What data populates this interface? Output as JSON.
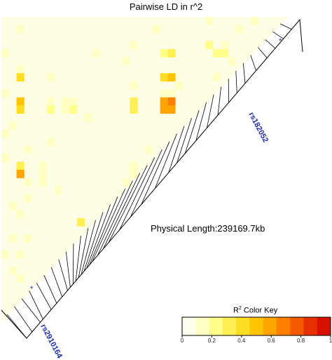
{
  "title": "Pairwise LD in r^2",
  "physical_length": "Physical Length:239169.7kb",
  "snp_labels": {
    "top": "rs182052",
    "bottom": "rs2910164"
  },
  "color_key": {
    "title": "R",
    "title_sup": "2",
    "title_rest": " Color Key",
    "ticks": [
      "0",
      "0.2",
      "0.4",
      "0.6",
      "0.8",
      "1"
    ],
    "colors": [
      "#fffff0",
      "#ffffc4",
      "#ffff8a",
      "#ffef55",
      "#ffdd22",
      "#ffc400",
      "#ffa400",
      "#ff8000",
      "#f55a00",
      "#e83000",
      "#d81000"
    ]
  },
  "chart_data": {
    "type": "heatmap",
    "title": "Pairwise LD in r^2",
    "metric": "r^2",
    "value_range": [
      0,
      1
    ],
    "n_snps": 38,
    "background_r2": 0.02,
    "snps_marked": [
      "rs182052",
      "rs2910164"
    ],
    "cells": [
      {
        "row": 0,
        "col": 33,
        "r2": 0.05
      },
      {
        "row": 0,
        "col": 27,
        "r2": 0.08
      },
      {
        "row": 1,
        "col": 2,
        "r2": 0.08
      },
      {
        "row": 1,
        "col": 20,
        "r2": 0.06
      },
      {
        "row": 1,
        "col": 31,
        "r2": 0.1
      },
      {
        "row": 2,
        "col": 35,
        "r2": 0.45
      },
      {
        "row": 2,
        "col": 36,
        "r2": 0.95
      },
      {
        "row": 3,
        "col": 17,
        "r2": 0.08
      },
      {
        "row": 3,
        "col": 27,
        "r2": 0.15
      },
      {
        "row": 3,
        "col": 29,
        "r2": 0.12
      },
      {
        "row": 4,
        "col": 0,
        "r2": 0.06
      },
      {
        "row": 4,
        "col": 12,
        "r2": 0.1
      },
      {
        "row": 4,
        "col": 21,
        "r2": 0.2
      },
      {
        "row": 4,
        "col": 22,
        "r2": 0.25
      },
      {
        "row": 4,
        "col": 28,
        "r2": 0.2
      },
      {
        "row": 4,
        "col": 29,
        "r2": 0.15
      },
      {
        "row": 5,
        "col": 16,
        "r2": 0.05
      },
      {
        "row": 5,
        "col": 30,
        "r2": 0.08
      },
      {
        "row": 6,
        "col": 2,
        "r2": 0.06
      },
      {
        "row": 7,
        "col": 2,
        "r2": 0.35
      },
      {
        "row": 7,
        "col": 6,
        "r2": 0.06
      },
      {
        "row": 7,
        "col": 21,
        "r2": 0.35
      },
      {
        "row": 7,
        "col": 22,
        "r2": 0.45
      },
      {
        "row": 7,
        "col": 28,
        "r2": 0.12
      },
      {
        "row": 8,
        "col": 17,
        "r2": 0.05
      },
      {
        "row": 8,
        "col": 23,
        "r2": 0.05
      },
      {
        "row": 9,
        "col": 0,
        "r2": 0.06
      },
      {
        "row": 9,
        "col": 21,
        "r2": 0.1
      },
      {
        "row": 9,
        "col": 22,
        "r2": 0.1
      },
      {
        "row": 9,
        "col": 28,
        "r2": 0.08
      },
      {
        "row": 10,
        "col": 2,
        "r2": 0.5
      },
      {
        "row": 10,
        "col": 6,
        "r2": 0.12
      },
      {
        "row": 10,
        "col": 8,
        "r2": 0.1
      },
      {
        "row": 10,
        "col": 9,
        "r2": 0.12
      },
      {
        "row": 10,
        "col": 17,
        "r2": 0.3
      },
      {
        "row": 10,
        "col": 21,
        "r2": 0.6
      },
      {
        "row": 10,
        "col": 22,
        "r2": 0.65
      },
      {
        "row": 10,
        "col": 28,
        "r2": 0.9
      },
      {
        "row": 11,
        "col": 2,
        "r2": 0.4
      },
      {
        "row": 11,
        "col": 6,
        "r2": 0.15
      },
      {
        "row": 11,
        "col": 8,
        "r2": 0.12
      },
      {
        "row": 11,
        "col": 9,
        "r2": 0.15
      },
      {
        "row": 11,
        "col": 17,
        "r2": 0.25
      },
      {
        "row": 11,
        "col": 21,
        "r2": 0.55
      },
      {
        "row": 11,
        "col": 22,
        "r2": 0.6
      },
      {
        "row": 12,
        "col": 11,
        "r2": 0.05
      },
      {
        "row": 13,
        "col": 1,
        "r2": 0.06
      },
      {
        "row": 14,
        "col": 0,
        "r2": 0.05
      },
      {
        "row": 15,
        "col": 6,
        "r2": 0.06
      },
      {
        "row": 16,
        "col": 3,
        "r2": 0.08
      },
      {
        "row": 16,
        "col": 19,
        "r2": 0.1
      },
      {
        "row": 17,
        "col": 0,
        "r2": 0.08
      },
      {
        "row": 17,
        "col": 22,
        "r2": 0.25
      },
      {
        "row": 18,
        "col": 2,
        "r2": 0.3
      },
      {
        "row": 18,
        "col": 5,
        "r2": 0.08
      },
      {
        "row": 18,
        "col": 17,
        "r2": 0.1
      },
      {
        "row": 18,
        "col": 21,
        "r2": 0.3
      },
      {
        "row": 19,
        "col": 2,
        "r2": 0.55
      },
      {
        "row": 19,
        "col": 5,
        "r2": 0.1
      },
      {
        "row": 19,
        "col": 17,
        "r2": 0.12
      },
      {
        "row": 19,
        "col": 21,
        "r2": 0.1
      },
      {
        "row": 20,
        "col": 3,
        "r2": 0.08
      },
      {
        "row": 20,
        "col": 5,
        "r2": 0.08
      },
      {
        "row": 20,
        "col": 16,
        "r2": 0.06
      },
      {
        "row": 21,
        "col": 7,
        "r2": 0.06
      },
      {
        "row": 22,
        "col": 3,
        "r2": 0.05
      },
      {
        "row": 23,
        "col": 1,
        "r2": 0.05
      },
      {
        "row": 24,
        "col": 2,
        "r2": 0.05
      },
      {
        "row": 25,
        "col": 10,
        "r2": 0.3
      },
      {
        "row": 27,
        "col": 1,
        "r2": 0.06
      },
      {
        "row": 27,
        "col": 3,
        "r2": 0.05
      },
      {
        "row": 29,
        "col": 0,
        "r2": 0.05
      },
      {
        "row": 29,
        "col": 2,
        "r2": 0.05
      },
      {
        "row": 31,
        "col": 1,
        "r2": 0.05
      },
      {
        "row": 32,
        "col": 2,
        "r2": 0.05
      }
    ]
  }
}
